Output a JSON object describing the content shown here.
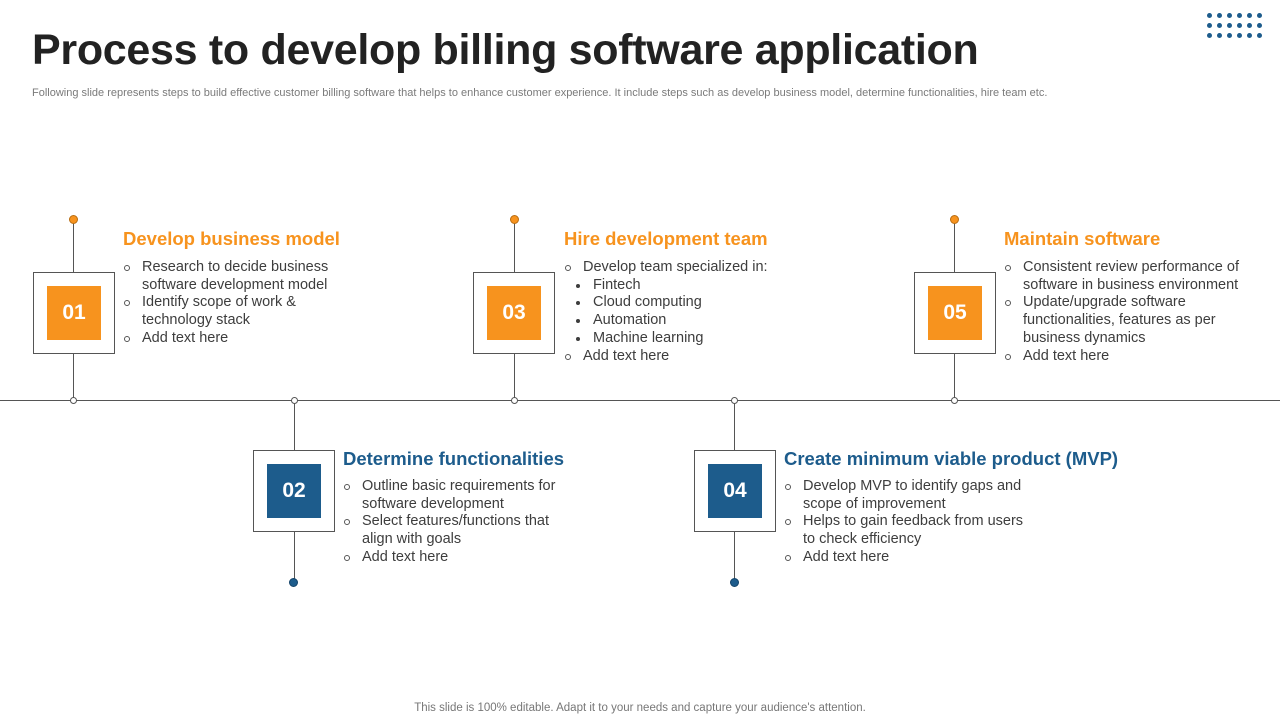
{
  "title": "Process to develop billing software application",
  "subtitle": "Following slide represents steps to build effective customer billing software that helps to enhance customer experience. It include steps such as develop business model, determine functionalities, hire team etc.",
  "footer": "This slide is 100% editable. Adapt it to your needs and capture your audience's attention.",
  "colors": {
    "orange": "#F7931E",
    "blue": "#1D5C8C",
    "line": "#555555"
  },
  "steps": [
    {
      "number": "01",
      "heading": "Develop business model",
      "bullets": [
        "Research to decide business software development model",
        "Identify scope of work & technology stack",
        "Add text here"
      ]
    },
    {
      "number": "02",
      "heading": "Determine functionalities",
      "bullets": [
        "Outline basic requirements for software development",
        "Select features/functions that align with goals",
        "Add text here"
      ]
    },
    {
      "number": "03",
      "heading": "Hire development team",
      "intro": "Develop team specialized in:",
      "sub_items": [
        "Fintech",
        "Cloud computing",
        "Automation",
        "Machine learning"
      ],
      "last": "Add text here"
    },
    {
      "number": "04",
      "heading": "Create minimum viable product (MVP)",
      "bullets": [
        "Develop MVP to identify gaps and scope of improvement",
        "Helps to gain feedback from users to check efficiency",
        "Add text here"
      ]
    },
    {
      "number": "05",
      "heading": "Maintain software",
      "bullets": [
        "Consistent review performance of software in business environment",
        "Update/upgrade software functionalities, features as per business dynamics",
        "Add text here"
      ]
    }
  ]
}
